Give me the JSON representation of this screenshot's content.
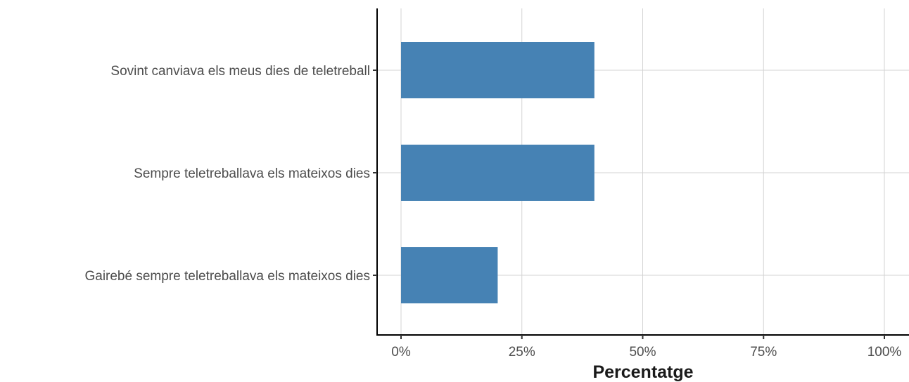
{
  "chart_data": {
    "type": "bar",
    "orientation": "horizontal",
    "categories": [
      "Sovint canviava els meus dies de teletreball",
      "Sempre teletreballava els mateixos dies",
      "Gairebé sempre teletreballava els mateixos dies"
    ],
    "values": [
      40,
      40,
      20
    ],
    "xlabel": "Percentatge",
    "ylabel": "",
    "xlim": [
      0,
      100
    ],
    "x_ticks": [
      0,
      25,
      50,
      75,
      100
    ],
    "x_tick_labels": [
      "0%",
      "25%",
      "50%",
      "75%",
      "100%"
    ],
    "bar_color": "#4682b4",
    "grid": true,
    "legend": "none"
  }
}
